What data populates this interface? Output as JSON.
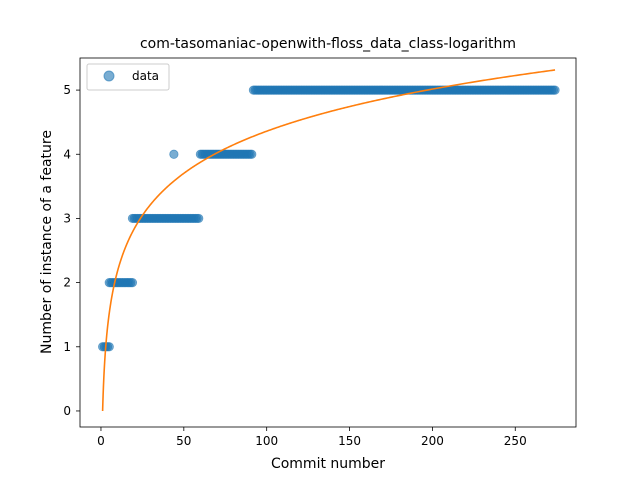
{
  "chart_data": {
    "type": "scatter",
    "title": "com-tasomaniac-openwith-floss_data_class-logarithm",
    "xlabel": "Commit number",
    "ylabel": "Number of instance of a feature",
    "xlim": [
      -12.65,
      286.65
    ],
    "ylim": [
      -0.25,
      5.5
    ],
    "xticks": [
      0,
      50,
      100,
      150,
      200,
      250
    ],
    "yticks": [
      0,
      1,
      2,
      3,
      4,
      5
    ],
    "legend": {
      "placement": "top-left",
      "entries": [
        "data"
      ]
    },
    "colors": {
      "data": "#1f77b4",
      "fit": "#ff7f0e"
    },
    "series": [
      {
        "name": "data",
        "kind": "scatter",
        "ranges": [
          {
            "x_start": 1,
            "x_end": 5,
            "y": 1
          },
          {
            "x_start": 5,
            "x_end": 19,
            "y": 2
          },
          {
            "x_start": 19,
            "x_end": 44,
            "y": 3
          },
          {
            "x_start": 44,
            "x_end": 44,
            "y": 4
          },
          {
            "x_start": 45,
            "x_end": 59,
            "y": 3
          },
          {
            "x_start": 60,
            "x_end": 91,
            "y": 4
          },
          {
            "x_start": 92,
            "x_end": 274,
            "y": 5
          }
        ]
      },
      {
        "name": "fit",
        "kind": "line",
        "model": "logarithmic",
        "a": 0.9466,
        "b": 0,
        "x_start": 1,
        "x_end": 274
      }
    ]
  }
}
